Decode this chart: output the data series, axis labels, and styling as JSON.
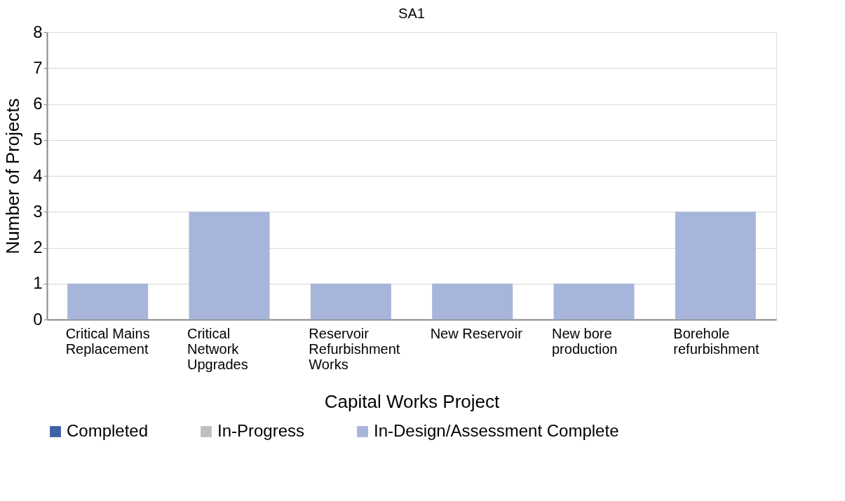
{
  "chart_data": {
    "type": "bar",
    "title": "SA1",
    "xlabel": "Capital Works Project",
    "ylabel": "Number of Projects",
    "categories": [
      "Critical Mains Replacement",
      "Critical Network Upgrades",
      "Reservoir Refurbishment Works",
      "New Reservoir",
      "New bore production",
      "Borehole refurbishment"
    ],
    "series": [
      {
        "name": "Completed",
        "color": "#4060a8",
        "values": [
          0,
          0,
          0,
          0,
          0,
          0
        ]
      },
      {
        "name": "In-Progress",
        "color": "#bfbfbf",
        "values": [
          0,
          0,
          0,
          0,
          0,
          0
        ]
      },
      {
        "name": "In-Design/Assessment Complete",
        "color": "#a7b5da",
        "values": [
          1,
          3,
          1,
          1,
          1,
          3
        ]
      }
    ],
    "ylim": [
      0,
      8
    ],
    "yticks": [
      0,
      1,
      2,
      3,
      4,
      5,
      6,
      7,
      8
    ],
    "grid": "y",
    "legend": "bottom"
  }
}
